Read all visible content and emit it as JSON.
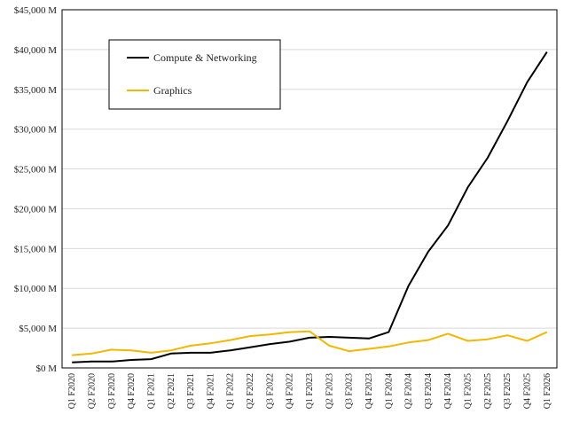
{
  "chart_data": {
    "type": "line",
    "title": "",
    "xlabel": "",
    "ylabel": "",
    "ylim": [
      0,
      45000
    ],
    "grid": true,
    "legend_position": "top-left",
    "y_tick_labels": [
      "$0 M",
      "$5,000 M",
      "$10,000 M",
      "$15,000 M",
      "$20,000 M",
      "$25,000 M",
      "$30,000 M",
      "$35,000 M",
      "$40,000 M",
      "$45,000 M"
    ],
    "y_tick_values": [
      0,
      5000,
      10000,
      15000,
      20000,
      25000,
      30000,
      35000,
      40000,
      45000
    ],
    "categories": [
      "Q1 F2020",
      "Q2 F2020",
      "Q3 F2020",
      "Q4 F2020",
      "Q1 F2021",
      "Q2 F2021",
      "Q3 F2021",
      "Q4 F2021",
      "Q1 F2022",
      "Q2 F2022",
      "Q3 F2022",
      "Q4 F2022",
      "Q1 F2023",
      "Q2 F2023",
      "Q3 F2023",
      "Q4 F2023",
      "Q1 F2024",
      "Q2 F2024",
      "Q3 F2024",
      "Q4 F2024",
      "Q1 F2025",
      "Q2 F2025",
      "Q3 F2025",
      "Q4 F2025",
      "Q1 F2026"
    ],
    "series": [
      {
        "name": "Compute & Networking",
        "color": "#000000",
        "values": [
          700,
          800,
          800,
          1000,
          1100,
          1800,
          1900,
          1900,
          2200,
          2600,
          3000,
          3300,
          3800,
          3900,
          3800,
          3700,
          4500,
          10300,
          14600,
          17900,
          22700,
          26400,
          31000,
          35900,
          39700
        ]
      },
      {
        "name": "Graphics",
        "color": "#f2b800",
        "values": [
          1600,
          1800,
          2300,
          2200,
          1900,
          2200,
          2800,
          3100,
          3500,
          4000,
          4200,
          4500,
          4600,
          2800,
          2100,
          2400,
          2700,
          3200,
          3500,
          4300,
          3400,
          3600,
          4100,
          3400,
          4500
        ]
      }
    ]
  }
}
